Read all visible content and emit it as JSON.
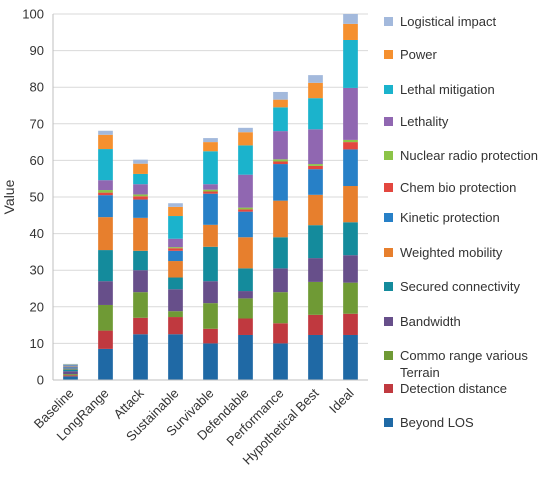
{
  "chart_data": {
    "type": "bar",
    "stacked": true,
    "title": "",
    "xlabel": "",
    "ylabel": "Value",
    "ylim": [
      0,
      100
    ],
    "yticks": [
      0,
      10,
      20,
      30,
      40,
      50,
      60,
      70,
      80,
      90,
      100
    ],
    "grid": true,
    "legend": "right",
    "categories": [
      "Baseline",
      "LongRange",
      "Attack",
      "Sustainable",
      "Survivable",
      "Defendable",
      "Performance",
      "Hypothetical Best",
      "Ideal"
    ],
    "series": [
      {
        "name": "Beyond LOS",
        "color": "#1f69a5",
        "values": [
          1.0,
          8.5,
          12.5,
          12.5,
          10.0,
          12.3,
          10.0,
          12.3,
          12.3
        ]
      },
      {
        "name": "Detection distance",
        "color": "#c0393f",
        "values": [
          0.3,
          5.0,
          4.5,
          4.7,
          4.0,
          4.5,
          5.5,
          5.5,
          5.8
        ]
      },
      {
        "name": "Commo range various Terrain",
        "color": "#6f9a35",
        "values": [
          0.3,
          7.0,
          7.0,
          1.6,
          7.0,
          5.5,
          8.5,
          9.0,
          8.5
        ]
      },
      {
        "name": "Bandwidth",
        "color": "#674f8a",
        "values": [
          0.8,
          6.5,
          6.0,
          6.0,
          6.0,
          2.0,
          6.5,
          6.5,
          7.5
        ]
      },
      {
        "name": "Secured connectivity",
        "color": "#148b9c",
        "values": [
          0.5,
          8.5,
          5.3,
          3.2,
          9.4,
          6.2,
          8.5,
          9.0,
          9.0
        ]
      },
      {
        "name": "Weighted mobility",
        "color": "#e77f2d",
        "values": [
          0.2,
          9.0,
          9.0,
          4.5,
          6.0,
          8.5,
          10.0,
          8.3,
          9.9
        ]
      },
      {
        "name": "Kinetic protection",
        "color": "#2780c7",
        "values": [
          0.4,
          6.0,
          5.0,
          2.8,
          8.5,
          7.0,
          10.0,
          7.0,
          10.0
        ]
      },
      {
        "name": "Chem bio protection",
        "color": "#e3473f",
        "values": [
          0.1,
          0.7,
          0.9,
          0.7,
          0.6,
          0.6,
          0.7,
          0.9,
          2.0
        ]
      },
      {
        "name": "Nuclear radio protection",
        "color": "#8cc448",
        "values": [
          0.1,
          0.7,
          0.5,
          0.3,
          0.5,
          0.5,
          0.6,
          0.5,
          0.6
        ]
      },
      {
        "name": "Lethality",
        "color": "#9067b1",
        "values": [
          0.3,
          2.7,
          2.8,
          2.3,
          1.5,
          9.0,
          7.7,
          9.5,
          14.2
        ]
      },
      {
        "name": "Lethal mitigation",
        "color": "#1bb3cc",
        "values": [
          0.2,
          8.5,
          2.8,
          6.2,
          9.0,
          8.0,
          6.5,
          8.5,
          13.1
        ]
      },
      {
        "name": "Power",
        "color": "#f5902f",
        "values": [
          0.1,
          3.9,
          2.8,
          2.5,
          2.5,
          3.6,
          2.1,
          4.2,
          4.4
        ]
      },
      {
        "name": "Logistical impact",
        "color": "#a3b9dc",
        "values": [
          0.1,
          1.1,
          1.1,
          1.0,
          1.1,
          1.2,
          2.1,
          2.1,
          2.7
        ]
      }
    ]
  }
}
